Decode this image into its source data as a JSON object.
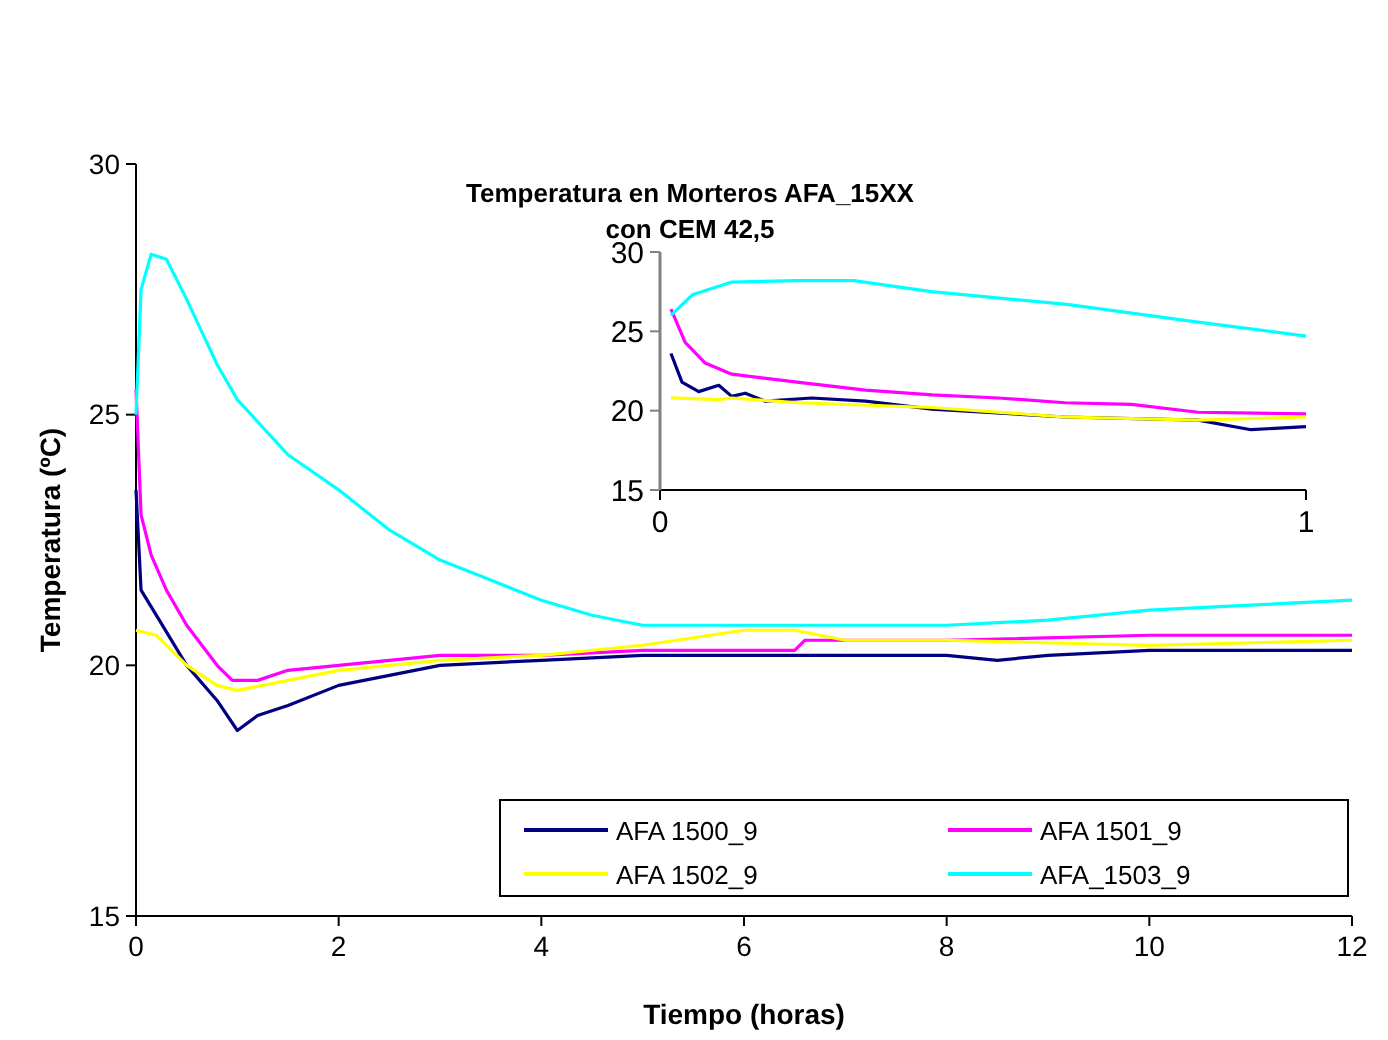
{
  "chart_data": [
    {
      "type": "line",
      "title": "Temperatura en Morteros AFA_15XX\ncon CEM 42,5",
      "xlabel": "Tiempo (horas)",
      "ylabel": "Temperatura (ºC)",
      "xlim": [
        0,
        12
      ],
      "xticks": [
        0,
        2,
        4,
        6,
        8,
        10,
        12
      ],
      "ylim": [
        15,
        30
      ],
      "yticks": [
        15,
        20,
        25,
        30
      ],
      "grid": false,
      "legend": "bottom right",
      "series": [
        {
          "name": "AFA 1500_9",
          "color": "#000080",
          "x": [
            0,
            0.05,
            0.2,
            0.5,
            0.8,
            1,
            1.2,
            1.5,
            2,
            2.5,
            3,
            4,
            5,
            8,
            8.5,
            9,
            10,
            12
          ],
          "values": [
            23.5,
            21.5,
            21,
            20,
            19.3,
            18.7,
            19,
            19.2,
            19.6,
            19.8,
            20,
            20.1,
            20.2,
            20.2,
            20.1,
            20.2,
            20.3,
            20.3
          ]
        },
        {
          "name": "AFA 1501_9",
          "color": "#ff00ff",
          "x": [
            0,
            0.05,
            0.15,
            0.3,
            0.5,
            0.8,
            0.95,
            1.2,
            1.5,
            2,
            3,
            4,
            5,
            6,
            6.5,
            6.6,
            8,
            10,
            12
          ],
          "values": [
            25.5,
            23,
            22.2,
            21.5,
            20.8,
            20,
            19.7,
            19.7,
            19.9,
            20,
            20.2,
            20.2,
            20.3,
            20.3,
            20.3,
            20.5,
            20.5,
            20.6,
            20.6
          ]
        },
        {
          "name": "AFA 1502_9",
          "color": "#ffff00",
          "x": [
            0,
            0.2,
            0.5,
            0.8,
            1,
            1.5,
            2,
            3,
            4,
            5,
            6,
            6.5,
            7,
            8,
            10,
            12
          ],
          "values": [
            20.7,
            20.6,
            20,
            19.6,
            19.5,
            19.7,
            19.9,
            20.1,
            20.2,
            20.4,
            20.7,
            20.7,
            20.5,
            20.5,
            20.4,
            20.5
          ]
        },
        {
          "name": "AFA_1503_9",
          "color": "#00ffff",
          "x": [
            0,
            0.05,
            0.15,
            0.3,
            0.5,
            0.8,
            1,
            1.5,
            2,
            2.5,
            3,
            3.5,
            4,
            4.5,
            5,
            6,
            7,
            8,
            9,
            10,
            11,
            12
          ],
          "values": [
            25,
            27.5,
            28.2,
            28.1,
            27.3,
            26,
            25.3,
            24.2,
            23.5,
            22.7,
            22.1,
            21.7,
            21.3,
            21,
            20.8,
            20.8,
            20.8,
            20.8,
            20.9,
            21.1,
            21.2,
            21.3
          ]
        }
      ]
    },
    {
      "type": "line",
      "xlim": [
        0,
        1
      ],
      "xticks": [
        0,
        1
      ],
      "ylim": [
        15,
        30
      ],
      "yticks": [
        15,
        20,
        25,
        30
      ],
      "grid": false,
      "series": [
        {
          "color": "#000080",
          "x": [
            0.017,
            0.034,
            0.06,
            0.091,
            0.111,
            0.132,
            0.163,
            0.235,
            0.318,
            0.421,
            0.627,
            0.833,
            0.915,
            1
          ],
          "values": [
            23.6,
            21.8,
            21.2,
            21.6,
            20.9,
            21.1,
            20.6,
            20.8,
            20.6,
            20.1,
            19.6,
            19.4,
            18.8,
            19
          ]
        },
        {
          "color": "#ff00ff",
          "x": [
            0.017,
            0.039,
            0.07,
            0.111,
            0.212,
            0.318,
            0.421,
            0.524,
            0.627,
            0.73,
            0.833,
            1
          ],
          "values": [
            26.4,
            24.3,
            23,
            22.3,
            21.8,
            21.3,
            21,
            20.8,
            20.5,
            20.4,
            19.9,
            19.8
          ]
        },
        {
          "color": "#ffff00",
          "x": [
            0.017,
            0.091,
            0.111,
            0.214,
            0.421,
            0.627,
            0.833,
            1
          ],
          "values": [
            20.8,
            20.7,
            20.8,
            20.5,
            20.2,
            19.6,
            19.4,
            19.6
          ]
        },
        {
          "color": "#00ffff",
          "x": [
            0.017,
            0.05,
            0.11,
            0.21,
            0.3,
            0.42,
            0.63,
            0.83,
            1
          ],
          "values": [
            26,
            27.3,
            28.1,
            28.2,
            28.2,
            27.5,
            26.7,
            25.6,
            24.7
          ]
        }
      ]
    }
  ]
}
